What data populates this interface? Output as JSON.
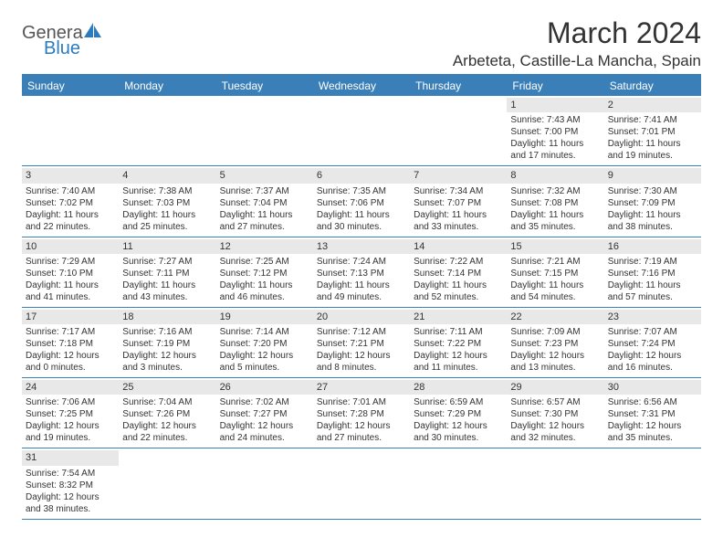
{
  "logo": {
    "text1": "Genera",
    "text2": "Blue"
  },
  "title": "March 2024",
  "location": "Arbeteta, Castille-La Mancha, Spain",
  "day_names": [
    "Sunday",
    "Monday",
    "Tuesday",
    "Wednesday",
    "Thursday",
    "Friday",
    "Saturday"
  ],
  "colors": {
    "header_bg": "#3a7fb8",
    "header_text": "#ffffff",
    "daynum_bg": "#e8e8e8",
    "border": "#3a7fb8",
    "logo_blue": "#2b7bbf"
  },
  "layout": {
    "cols": 7,
    "rows": 6,
    "cell_fontsize": 10,
    "daynum_fontsize": 11
  },
  "weeks": [
    [
      null,
      null,
      null,
      null,
      null,
      {
        "n": "1",
        "sunrise": "Sunrise: 7:43 AM",
        "sunset": "Sunset: 7:00 PM",
        "day1": "Daylight: 11 hours",
        "day2": "and 17 minutes."
      },
      {
        "n": "2",
        "sunrise": "Sunrise: 7:41 AM",
        "sunset": "Sunset: 7:01 PM",
        "day1": "Daylight: 11 hours",
        "day2": "and 19 minutes."
      }
    ],
    [
      {
        "n": "3",
        "sunrise": "Sunrise: 7:40 AM",
        "sunset": "Sunset: 7:02 PM",
        "day1": "Daylight: 11 hours",
        "day2": "and 22 minutes."
      },
      {
        "n": "4",
        "sunrise": "Sunrise: 7:38 AM",
        "sunset": "Sunset: 7:03 PM",
        "day1": "Daylight: 11 hours",
        "day2": "and 25 minutes."
      },
      {
        "n": "5",
        "sunrise": "Sunrise: 7:37 AM",
        "sunset": "Sunset: 7:04 PM",
        "day1": "Daylight: 11 hours",
        "day2": "and 27 minutes."
      },
      {
        "n": "6",
        "sunrise": "Sunrise: 7:35 AM",
        "sunset": "Sunset: 7:06 PM",
        "day1": "Daylight: 11 hours",
        "day2": "and 30 minutes."
      },
      {
        "n": "7",
        "sunrise": "Sunrise: 7:34 AM",
        "sunset": "Sunset: 7:07 PM",
        "day1": "Daylight: 11 hours",
        "day2": "and 33 minutes."
      },
      {
        "n": "8",
        "sunrise": "Sunrise: 7:32 AM",
        "sunset": "Sunset: 7:08 PM",
        "day1": "Daylight: 11 hours",
        "day2": "and 35 minutes."
      },
      {
        "n": "9",
        "sunrise": "Sunrise: 7:30 AM",
        "sunset": "Sunset: 7:09 PM",
        "day1": "Daylight: 11 hours",
        "day2": "and 38 minutes."
      }
    ],
    [
      {
        "n": "10",
        "sunrise": "Sunrise: 7:29 AM",
        "sunset": "Sunset: 7:10 PM",
        "day1": "Daylight: 11 hours",
        "day2": "and 41 minutes."
      },
      {
        "n": "11",
        "sunrise": "Sunrise: 7:27 AM",
        "sunset": "Sunset: 7:11 PM",
        "day1": "Daylight: 11 hours",
        "day2": "and 43 minutes."
      },
      {
        "n": "12",
        "sunrise": "Sunrise: 7:25 AM",
        "sunset": "Sunset: 7:12 PM",
        "day1": "Daylight: 11 hours",
        "day2": "and 46 minutes."
      },
      {
        "n": "13",
        "sunrise": "Sunrise: 7:24 AM",
        "sunset": "Sunset: 7:13 PM",
        "day1": "Daylight: 11 hours",
        "day2": "and 49 minutes."
      },
      {
        "n": "14",
        "sunrise": "Sunrise: 7:22 AM",
        "sunset": "Sunset: 7:14 PM",
        "day1": "Daylight: 11 hours",
        "day2": "and 52 minutes."
      },
      {
        "n": "15",
        "sunrise": "Sunrise: 7:21 AM",
        "sunset": "Sunset: 7:15 PM",
        "day1": "Daylight: 11 hours",
        "day2": "and 54 minutes."
      },
      {
        "n": "16",
        "sunrise": "Sunrise: 7:19 AM",
        "sunset": "Sunset: 7:16 PM",
        "day1": "Daylight: 11 hours",
        "day2": "and 57 minutes."
      }
    ],
    [
      {
        "n": "17",
        "sunrise": "Sunrise: 7:17 AM",
        "sunset": "Sunset: 7:18 PM",
        "day1": "Daylight: 12 hours",
        "day2": "and 0 minutes."
      },
      {
        "n": "18",
        "sunrise": "Sunrise: 7:16 AM",
        "sunset": "Sunset: 7:19 PM",
        "day1": "Daylight: 12 hours",
        "day2": "and 3 minutes."
      },
      {
        "n": "19",
        "sunrise": "Sunrise: 7:14 AM",
        "sunset": "Sunset: 7:20 PM",
        "day1": "Daylight: 12 hours",
        "day2": "and 5 minutes."
      },
      {
        "n": "20",
        "sunrise": "Sunrise: 7:12 AM",
        "sunset": "Sunset: 7:21 PM",
        "day1": "Daylight: 12 hours",
        "day2": "and 8 minutes."
      },
      {
        "n": "21",
        "sunrise": "Sunrise: 7:11 AM",
        "sunset": "Sunset: 7:22 PM",
        "day1": "Daylight: 12 hours",
        "day2": "and 11 minutes."
      },
      {
        "n": "22",
        "sunrise": "Sunrise: 7:09 AM",
        "sunset": "Sunset: 7:23 PM",
        "day1": "Daylight: 12 hours",
        "day2": "and 13 minutes."
      },
      {
        "n": "23",
        "sunrise": "Sunrise: 7:07 AM",
        "sunset": "Sunset: 7:24 PM",
        "day1": "Daylight: 12 hours",
        "day2": "and 16 minutes."
      }
    ],
    [
      {
        "n": "24",
        "sunrise": "Sunrise: 7:06 AM",
        "sunset": "Sunset: 7:25 PM",
        "day1": "Daylight: 12 hours",
        "day2": "and 19 minutes."
      },
      {
        "n": "25",
        "sunrise": "Sunrise: 7:04 AM",
        "sunset": "Sunset: 7:26 PM",
        "day1": "Daylight: 12 hours",
        "day2": "and 22 minutes."
      },
      {
        "n": "26",
        "sunrise": "Sunrise: 7:02 AM",
        "sunset": "Sunset: 7:27 PM",
        "day1": "Daylight: 12 hours",
        "day2": "and 24 minutes."
      },
      {
        "n": "27",
        "sunrise": "Sunrise: 7:01 AM",
        "sunset": "Sunset: 7:28 PM",
        "day1": "Daylight: 12 hours",
        "day2": "and 27 minutes."
      },
      {
        "n": "28",
        "sunrise": "Sunrise: 6:59 AM",
        "sunset": "Sunset: 7:29 PM",
        "day1": "Daylight: 12 hours",
        "day2": "and 30 minutes."
      },
      {
        "n": "29",
        "sunrise": "Sunrise: 6:57 AM",
        "sunset": "Sunset: 7:30 PM",
        "day1": "Daylight: 12 hours",
        "day2": "and 32 minutes."
      },
      {
        "n": "30",
        "sunrise": "Sunrise: 6:56 AM",
        "sunset": "Sunset: 7:31 PM",
        "day1": "Daylight: 12 hours",
        "day2": "and 35 minutes."
      }
    ],
    [
      {
        "n": "31",
        "sunrise": "Sunrise: 7:54 AM",
        "sunset": "Sunset: 8:32 PM",
        "day1": "Daylight: 12 hours",
        "day2": "and 38 minutes."
      },
      null,
      null,
      null,
      null,
      null,
      null
    ]
  ]
}
